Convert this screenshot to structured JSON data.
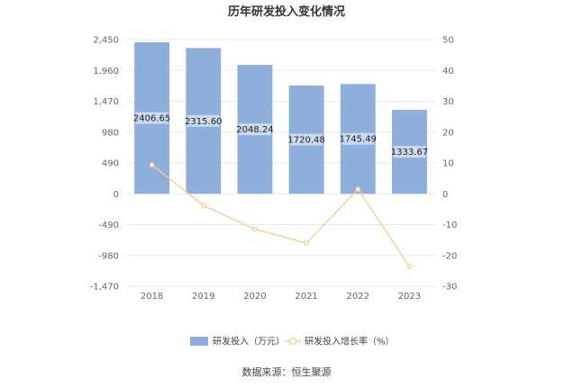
{
  "chart_data": {
    "type": "bar",
    "title": "历年研发投入变化情况",
    "categories": [
      "2018",
      "2019",
      "2020",
      "2021",
      "2022",
      "2023"
    ],
    "series": [
      {
        "name": "研发投入（万元）",
        "type": "bar",
        "axis": "left",
        "color": "#8eaedc",
        "values": [
          2406.65,
          2315.6,
          2048.24,
          1720.48,
          1745.49,
          1333.67
        ],
        "labels": [
          "2406.65",
          "2315.60",
          "2048.24",
          "1720.48",
          "1745.49",
          "1333.67"
        ]
      },
      {
        "name": "研发投入增长率（%）",
        "type": "line",
        "axis": "right",
        "color": "#f5cf8e",
        "values": [
          9.4,
          -3.8,
          -11.5,
          -16.0,
          1.5,
          -23.6
        ]
      }
    ],
    "y_left": {
      "ticks": [
        2450,
        1960,
        1470,
        980,
        490,
        0,
        -490,
        -980,
        -1470
      ],
      "tick_labels": [
        "2,450",
        "1,960",
        "1,470",
        "980",
        "490",
        "0",
        "-490",
        "-980",
        "-1,470"
      ],
      "ylim": [
        -1470,
        2450
      ]
    },
    "y_right": {
      "ticks": [
        50,
        40,
        30,
        20,
        10,
        0,
        -10,
        -20,
        -30
      ],
      "tick_labels": [
        "50",
        "40",
        "30",
        "20",
        "10",
        "0",
        "-10",
        "-20",
        "-30"
      ],
      "ylim": [
        -30,
        50
      ]
    },
    "grid": true,
    "legend_position": "bottom"
  },
  "source_text": "数据来源：恒生聚源"
}
